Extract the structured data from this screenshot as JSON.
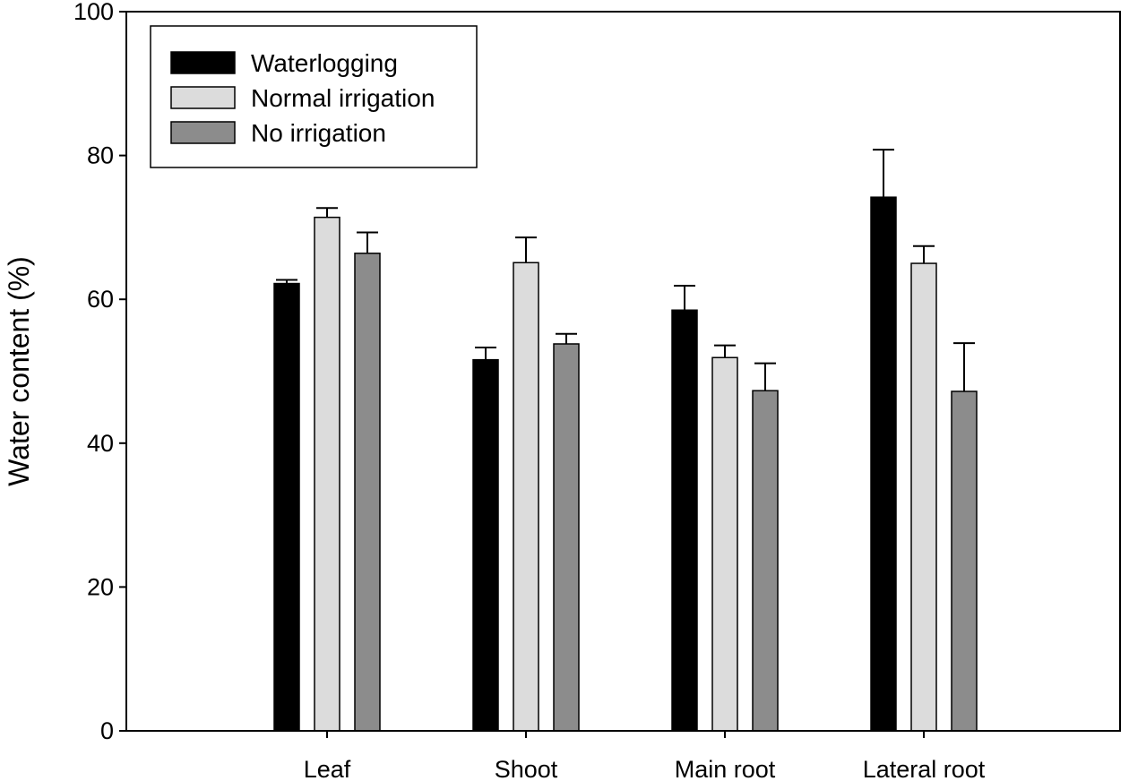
{
  "chart_data": {
    "type": "bar",
    "title": "",
    "xlabel": "",
    "ylabel": "Water content (%)",
    "ylim": [
      0,
      100
    ],
    "yticks": [
      0,
      20,
      40,
      60,
      80,
      100
    ],
    "categories": [
      "Leaf",
      "Shoot",
      "Main root",
      "Lateral root"
    ],
    "series": [
      {
        "name": "Waterlogging",
        "color": "#000000",
        "values": [
          62.2,
          51.6,
          58.5,
          74.2
        ],
        "errors": [
          0.5,
          1.7,
          3.4,
          6.6
        ]
      },
      {
        "name": "Normal irrigation",
        "color": "#dcdcdc",
        "values": [
          71.4,
          65.1,
          51.9,
          65.0
        ],
        "errors": [
          1.3,
          3.5,
          1.7,
          2.4
        ]
      },
      {
        "name": "No irrigation",
        "color": "#8c8c8c",
        "values": [
          66.4,
          53.8,
          47.3,
          47.2
        ],
        "errors": [
          2.9,
          1.4,
          3.8,
          6.7
        ]
      }
    ],
    "grid": false,
    "legend_position": "top-left"
  }
}
